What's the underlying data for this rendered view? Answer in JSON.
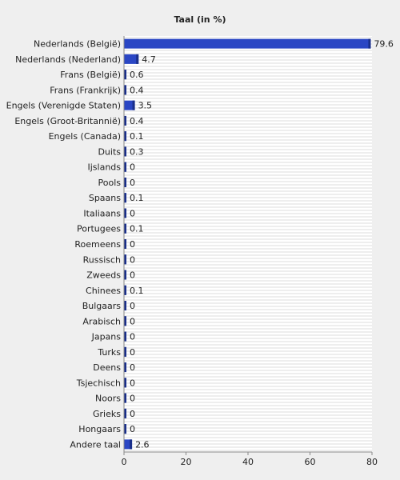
{
  "chart_data": {
    "type": "bar",
    "orientation": "horizontal",
    "title": "Taal (in %)",
    "xlabel": "",
    "ylabel": "",
    "xlim": [
      0,
      80
    ],
    "x_ticks": [
      0,
      20,
      40,
      60,
      80
    ],
    "grid": true,
    "bar_color": "#2a46c4",
    "categories": [
      "Nederlands (België)",
      "Nederlands (Nederland)",
      "Frans (België)",
      "Frans (Frankrijk)",
      "Engels (Verenigde Staten)",
      "Engels (Groot-Britannië)",
      "Engels (Canada)",
      "Duits",
      "Ijslands",
      "Pools",
      "Spaans",
      "Italiaans",
      "Portugees",
      "Roemeens",
      "Russisch",
      "Zweeds",
      "Chinees",
      "Bulgaars",
      "Arabisch",
      "Japans",
      "Turks",
      "Deens",
      "Tsjechisch",
      "Noors",
      "Grieks",
      "Hongaars",
      "Andere taal"
    ],
    "values": [
      79.6,
      4.7,
      0.6,
      0.4,
      3.5,
      0.4,
      0.1,
      0.3,
      0,
      0,
      0.1,
      0,
      0.1,
      0,
      0,
      0,
      0.1,
      0,
      0,
      0,
      0,
      0,
      0,
      0,
      0,
      0,
      2.6
    ],
    "value_labels": [
      "79.6",
      "4.7",
      "0.6",
      "0.4",
      "3.5",
      "0.4",
      "0.1",
      "0.3",
      "0",
      "0",
      "0.1",
      "0",
      "0.1",
      "0",
      "0",
      "0",
      "0.1",
      "0",
      "0",
      "0",
      "0",
      "0",
      "0",
      "0",
      "0",
      "0",
      "2.6"
    ]
  }
}
